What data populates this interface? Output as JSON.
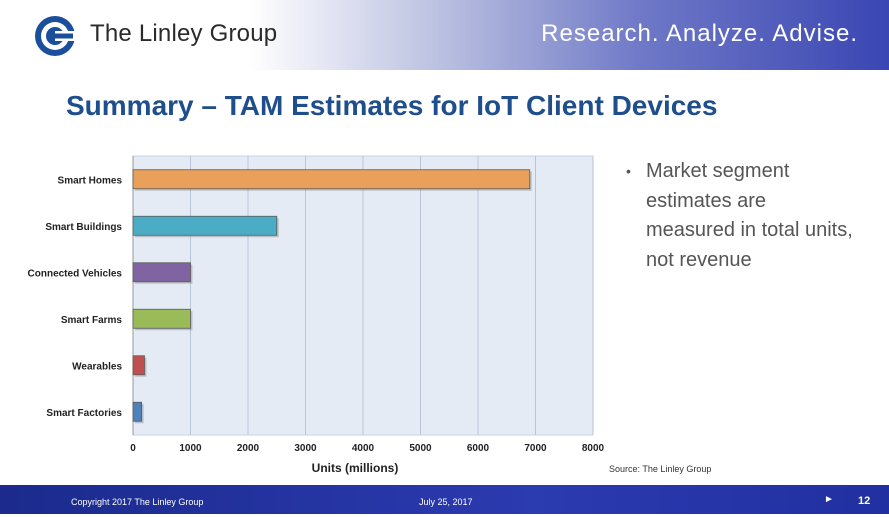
{
  "header": {
    "company": "The Linley Group",
    "tagline": "Research. Analyze. Advise."
  },
  "title": "Summary – TAM Estimates for IoT Client Devices",
  "bullet": "Market segment estimates are measured in total units, not revenue",
  "source": "Source: The Linley Group",
  "footer": {
    "copyright": "Copyright 2017 The Linley Group",
    "date": "July 25, 2017",
    "page": "12"
  },
  "colors": {
    "header_blue": "#3a46b3",
    "title_blue": "#1f4e8c",
    "plot_bg": "#e4ebf5"
  },
  "chart_data": {
    "type": "bar",
    "orientation": "horizontal",
    "categories": [
      "Smart Homes",
      "Smart Buildings",
      "Connected Vehicles",
      "Smart Farms",
      "Wearables",
      "Smart Factories"
    ],
    "values": [
      6900,
      2500,
      1000,
      1000,
      200,
      150
    ],
    "colors": [
      "#e8a05a",
      "#4bacc6",
      "#8064a2",
      "#9bbb59",
      "#c0504d",
      "#4f81bd"
    ],
    "xlabel": "Units (millions)",
    "ylabel": "",
    "xlim": [
      0,
      8000
    ],
    "xticks": [
      "0",
      "1000",
      "2000",
      "3000",
      "4000",
      "5000",
      "6000",
      "7000",
      "8000"
    ],
    "grid": true,
    "legend": "none"
  }
}
